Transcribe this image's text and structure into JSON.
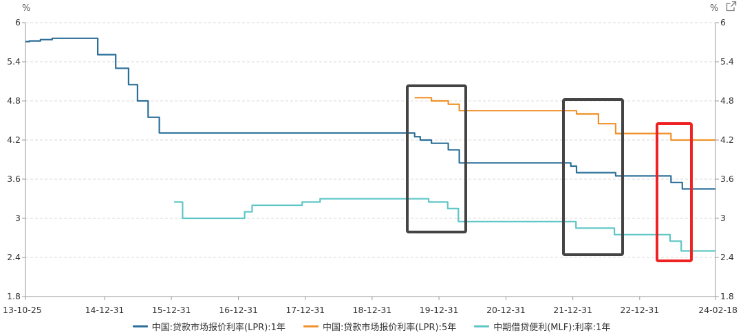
{
  "units": {
    "left": "%",
    "right": "%"
  },
  "legend": [
    {
      "label": "中国:贷款市场报价利率(LPR):1年",
      "color": "#2c6f99"
    },
    {
      "label": "中国:贷款市场报价利率(LPR):5年",
      "color": "#f0922b"
    },
    {
      "label": "中期借贷便利(MLF):利率:1年",
      "color": "#5ec6c6"
    }
  ],
  "highlight_colors": {
    "dark": "#444444",
    "red": "#ee2222"
  },
  "icons": {
    "export": "external-link-icon"
  },
  "chart_data": {
    "type": "line",
    "x_ticks": [
      "13-10-25",
      "14-12-31",
      "15-12-31",
      "16-12-31",
      "17-12-31",
      "18-12-31",
      "19-12-31",
      "20-12-31",
      "21-12-31",
      "22-12-31",
      "24-02-18"
    ],
    "y_ticks": [
      "1.8",
      "2.4",
      "3",
      "3.6",
      "4.2",
      "4.8",
      "5.4",
      "6"
    ],
    "ylim": [
      1.8,
      6
    ],
    "xlim": [
      "2013-10-25",
      "2024-02-18"
    ],
    "grid": "horizontal dashed",
    "legend_position": "bottom",
    "series": [
      {
        "name": "中国:贷款市场报价利率(LPR):1年",
        "color": "#2c6f99",
        "points": [
          [
            "2013-10-25",
            5.71
          ],
          [
            "2013-11-15",
            5.72
          ],
          [
            "2014-01-15",
            5.74
          ],
          [
            "2014-03-20",
            5.76
          ],
          [
            "2014-07-15",
            5.76
          ],
          [
            "2014-11-24",
            5.51
          ],
          [
            "2015-03-02",
            5.3
          ],
          [
            "2015-05-11",
            5.05
          ],
          [
            "2015-06-29",
            4.8
          ],
          [
            "2015-08-26",
            4.55
          ],
          [
            "2015-10-26",
            4.31
          ],
          [
            "2017-03-20",
            4.31
          ],
          [
            "2017-04-20",
            4.31
          ],
          [
            "2019-08-20",
            4.25
          ],
          [
            "2019-09-20",
            4.2
          ],
          [
            "2019-11-20",
            4.15
          ],
          [
            "2020-02-20",
            4.05
          ],
          [
            "2020-04-20",
            3.85
          ],
          [
            "2021-12-20",
            3.8
          ],
          [
            "2022-01-20",
            3.7
          ],
          [
            "2022-08-22",
            3.65
          ],
          [
            "2023-06-20",
            3.55
          ],
          [
            "2023-08-21",
            3.45
          ],
          [
            "2024-02-18",
            3.45
          ]
        ]
      },
      {
        "name": "中国:贷款市场报价利率(LPR):5年",
        "color": "#f0922b",
        "points": [
          [
            "2019-08-20",
            4.85
          ],
          [
            "2019-10-21",
            4.85
          ],
          [
            "2019-11-20",
            4.8
          ],
          [
            "2020-02-20",
            4.75
          ],
          [
            "2020-04-20",
            4.65
          ],
          [
            "2022-01-20",
            4.6
          ],
          [
            "2022-05-20",
            4.45
          ],
          [
            "2022-08-22",
            4.3
          ],
          [
            "2023-06-20",
            4.2
          ],
          [
            "2024-02-18",
            4.2
          ]
        ]
      },
      {
        "name": "中期借贷便利(MLF):利率:1年",
        "color": "#5ec6c6",
        "points": [
          [
            "2016-01-15",
            3.25
          ],
          [
            "2016-03-01",
            3.0
          ],
          [
            "2017-02-03",
            3.1
          ],
          [
            "2017-03-16",
            3.2
          ],
          [
            "2017-12-14",
            3.25
          ],
          [
            "2018-03-22",
            3.3
          ],
          [
            "2019-11-05",
            3.25
          ],
          [
            "2020-02-17",
            3.15
          ],
          [
            "2020-04-15",
            2.95
          ],
          [
            "2022-01-17",
            2.85
          ],
          [
            "2022-08-15",
            2.75
          ],
          [
            "2023-06-15",
            2.65
          ],
          [
            "2023-08-15",
            2.5
          ],
          [
            "2024-02-18",
            2.5
          ]
        ]
      }
    ]
  }
}
